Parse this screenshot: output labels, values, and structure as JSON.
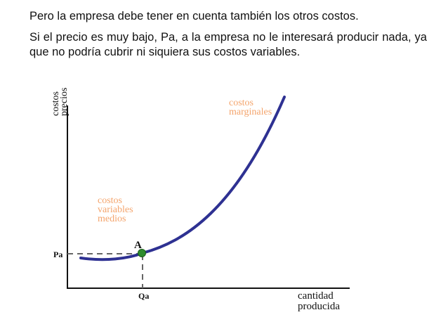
{
  "slide": {
    "paragraph_1": "Pero la empresa debe tener en cuenta también los otros costos.",
    "paragraph_2": "Si el precio es muy bajo, Pa, a la empresa no le interesará producir nada, ya que no podría cubrir ni siquiera sus costos variables."
  },
  "diagram": {
    "y_axis_label_line1": "costos",
    "y_axis_label_line2": "precios",
    "x_axis_label_line1": "cantidad",
    "x_axis_label_line2": "producida",
    "marginal_cost_label_line1": "costos",
    "marginal_cost_label_line2": "marginales",
    "avc_label_line1": "costos",
    "avc_label_line2": "variables",
    "avc_label_line3": "medios",
    "point_label": "A",
    "price_tick_label": "Pa",
    "quantity_tick_label": "Qa"
  },
  "colors": {
    "curve": "#2e3192",
    "label_orange": "#f4a46c",
    "point_green": "#2e8b2e",
    "dashed": "#666666",
    "axis": "#111111"
  }
}
